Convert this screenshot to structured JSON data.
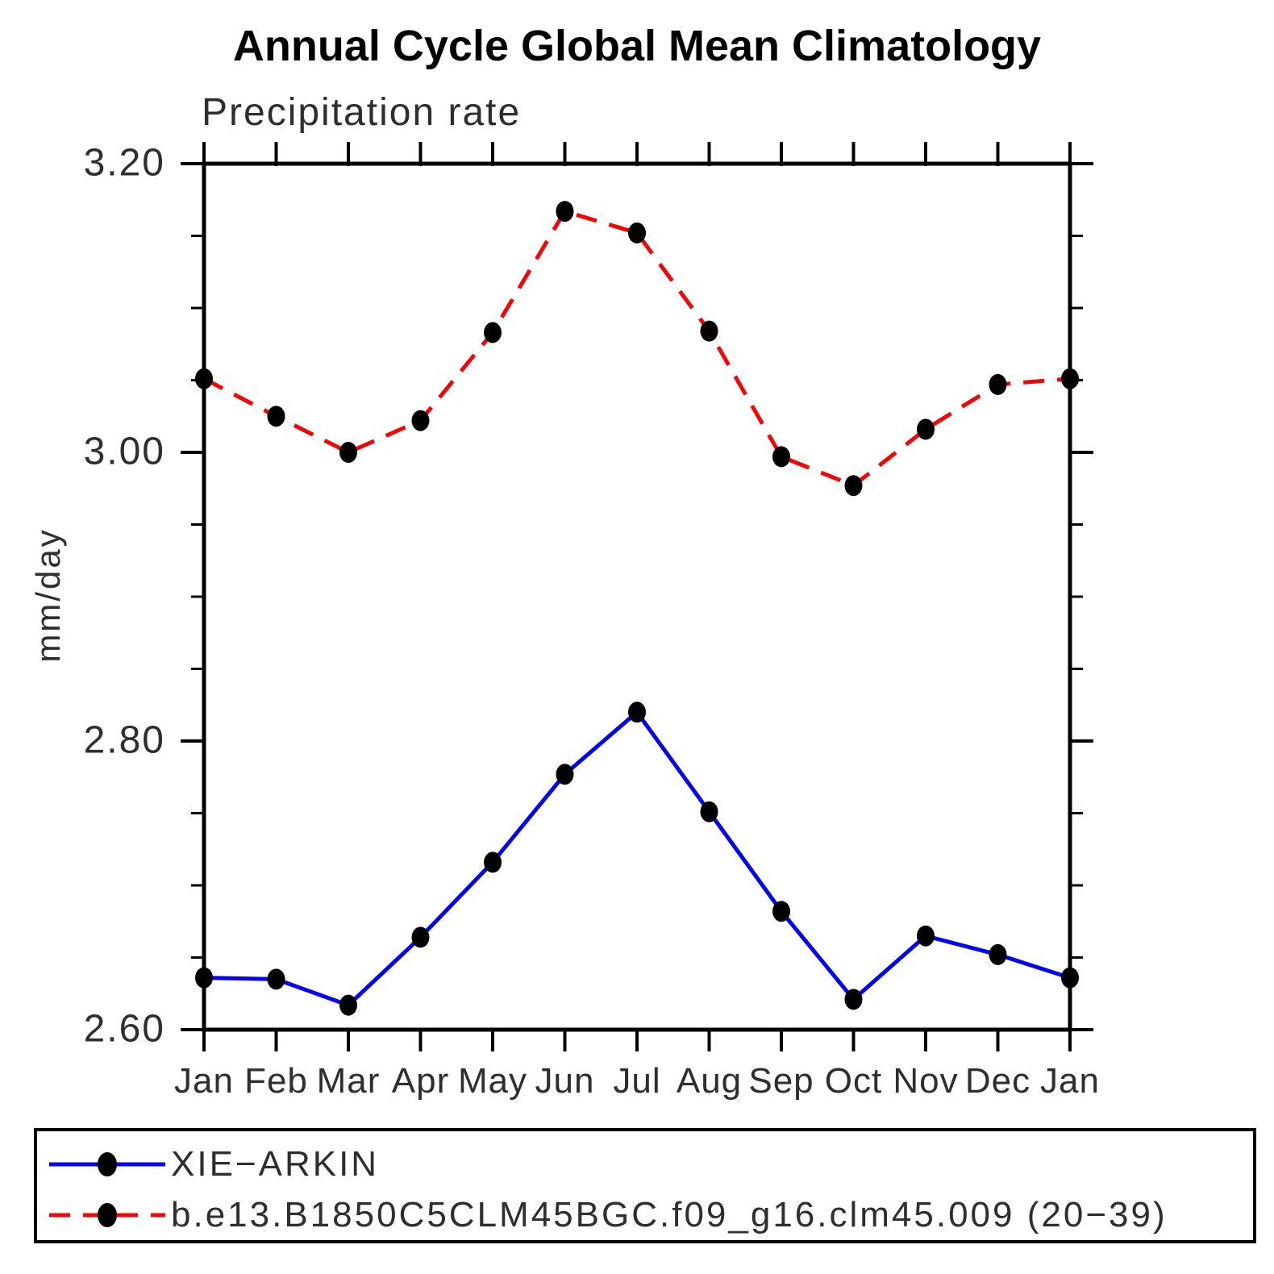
{
  "chart": {
    "title": "Annual Cycle Global Mean Climatology",
    "subtitle": "Precipitation rate",
    "ylabel": "mm/day"
  },
  "chart_data": {
    "type": "line",
    "title": "Annual Cycle Global Mean Climatology",
    "subtitle": "Precipitation rate",
    "xlabel": "",
    "ylabel": "mm/day",
    "categories": [
      "Jan",
      "Feb",
      "Mar",
      "Apr",
      "May",
      "Jun",
      "Jul",
      "Aug",
      "Sep",
      "Oct",
      "Nov",
      "Dec",
      "Jan"
    ],
    "series": [
      {
        "name": "XIE−ARKIN",
        "color": "#0404ee",
        "line_style": "solid",
        "marker": "filled-circle",
        "marker_color": "#000000",
        "values": [
          2.636,
          2.635,
          2.617,
          2.664,
          2.716,
          2.777,
          2.82,
          2.751,
          2.682,
          2.621,
          2.665,
          2.652,
          2.636
        ]
      },
      {
        "name": "b.e13.B1850C5CLM45BGC.f09_g16.clm45.009 (20−39)",
        "color": "#f20707",
        "line_style": "dashed",
        "marker": "filled-circle",
        "marker_color": "#000000",
        "values": [
          3.051,
          3.025,
          3.0,
          3.022,
          3.083,
          3.167,
          3.152,
          3.084,
          2.997,
          2.977,
          3.016,
          3.047,
          3.051
        ]
      }
    ],
    "ylim": [
      2.6,
      3.2
    ],
    "yticks": [
      {
        "value": 3.2,
        "label": "3.20"
      },
      {
        "value": 3.0,
        "label": "3.00"
      },
      {
        "value": 2.8,
        "label": "2.80"
      },
      {
        "value": 2.6,
        "label": "2.60"
      }
    ],
    "y_minor_step": 0.05,
    "grid": false,
    "legend_position": "bottom-box"
  }
}
